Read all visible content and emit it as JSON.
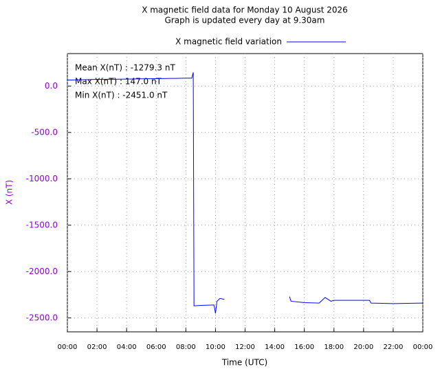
{
  "chart_data": {
    "type": "line",
    "title": "X magnetic field data for Monday 10 August 2026",
    "subtitle": "Graph is updated every day at 9.30am",
    "x_label": "Time (UTC)",
    "y_label": "X (nT)",
    "annotations": [
      "Mean X(nT) : -1279.3 nT",
      "Max X(nT) : 147.0 nT",
      "Min X(nT) : -2451.0 nT"
    ],
    "x": [
      0,
      1,
      2,
      3,
      4,
      5,
      6,
      7,
      8,
      8.4,
      8.5,
      8.55,
      9,
      9.9,
      10.0,
      10.1,
      10.3,
      10.6,
      12,
      15.0,
      15.1,
      16,
      17.0,
      17.4,
      17.8,
      18,
      20.4,
      20.5,
      22,
      24
    ],
    "series": [
      {
        "name": "X magnetic field variation",
        "color": "#0000ff",
        "values": [
          65,
          68,
          72,
          73,
          75,
          78,
          80,
          82,
          85,
          85,
          147,
          -2370,
          -2365,
          -2360,
          -2451,
          -2320,
          -2290,
          -2300,
          null,
          -2270,
          -2320,
          -2335,
          -2340,
          -2280,
          -2320,
          -2310,
          -2310,
          -2340,
          -2345,
          -2340
        ]
      }
    ],
    "xlim": [
      0,
      24
    ],
    "xticks": [
      {
        "value": 0,
        "label": "00:00"
      },
      {
        "value": 2,
        "label": "02:00"
      },
      {
        "value": 4,
        "label": "04:00"
      },
      {
        "value": 6,
        "label": "06:00"
      },
      {
        "value": 8,
        "label": "08:00"
      },
      {
        "value": 10,
        "label": "10:00"
      },
      {
        "value": 12,
        "label": "12:00"
      },
      {
        "value": 14,
        "label": "14:00"
      },
      {
        "value": 16,
        "label": "16:00"
      },
      {
        "value": 18,
        "label": "18:00"
      },
      {
        "value": 20,
        "label": "20:00"
      },
      {
        "value": 22,
        "label": "22:00"
      },
      {
        "value": 24,
        "label": "00:00"
      }
    ],
    "ylim": [
      -2650,
      350
    ],
    "yticks": [
      {
        "value": 0,
        "label": "0.0"
      },
      {
        "value": -500,
        "label": "-500.0"
      },
      {
        "value": -1000,
        "label": "-1000.0"
      },
      {
        "value": -1500,
        "label": "-1500.0"
      },
      {
        "value": -2000,
        "label": "-2000.0"
      },
      {
        "value": -2500,
        "label": "-2500.0"
      }
    ],
    "grid": true
  }
}
